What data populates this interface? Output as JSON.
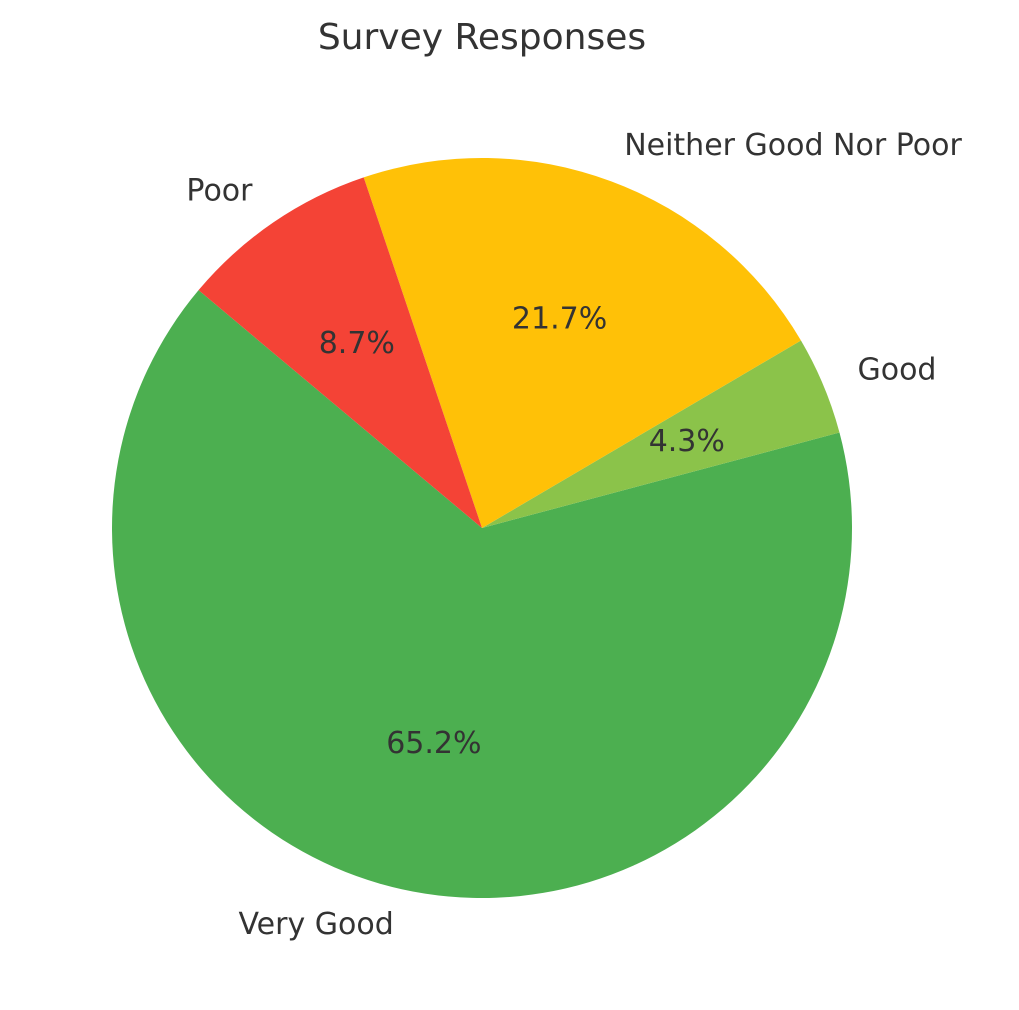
{
  "chart_data": {
    "type": "pie",
    "title": "Survey Responses",
    "categories": [
      "Very Good",
      "Good",
      "Neither Good Nor Poor",
      "Poor"
    ],
    "values": [
      65.2,
      4.3,
      21.7,
      8.7
    ],
    "percent_labels": [
      "65.2%",
      "4.3%",
      "21.7%",
      "8.7%"
    ],
    "colors": [
      "#4caf50",
      "#8bc34a",
      "#ffc107",
      "#f44336"
    ],
    "start_angle_deg": 140,
    "direction": "counterclockwise",
    "legend": "none"
  }
}
